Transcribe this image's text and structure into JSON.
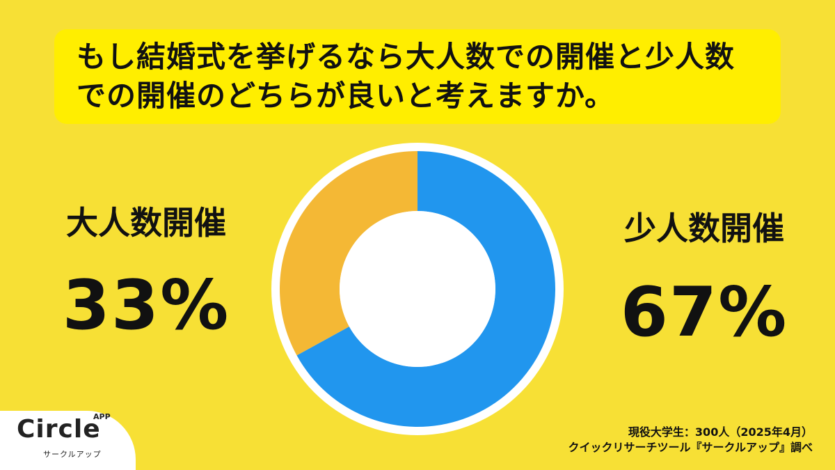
{
  "title": "もし結婚式を挙げるなら大人数での開催と少人数での開催のどちらが良いと考えますか。",
  "colors": {
    "background": "#F7E035",
    "title_box": "#FFEE00",
    "large": "#F4B835",
    "small": "#2196EE"
  },
  "chart_data": {
    "type": "pie",
    "style": "donut",
    "title": "もし結婚式を挙げるなら大人数での開催と少人数での開催のどちらが良いと考えますか。",
    "slices": [
      {
        "label": "少人数開催",
        "value": 67,
        "display": "67%",
        "color": "#2196EE"
      },
      {
        "label": "大人数開催",
        "value": 33,
        "display": "33%",
        "color": "#F4B835"
      }
    ]
  },
  "labels": {
    "left_name": "大人数開催",
    "left_value": "33%",
    "right_name": "少人数開催",
    "right_value": "67%"
  },
  "footer": {
    "line1": "現役大学生：300人（2025年4月）",
    "line2": "クイックリサーチツール『サークルアップ』調べ"
  },
  "logo": {
    "name": "Circle",
    "superscript": "APP",
    "sub": "サークルアップ"
  }
}
